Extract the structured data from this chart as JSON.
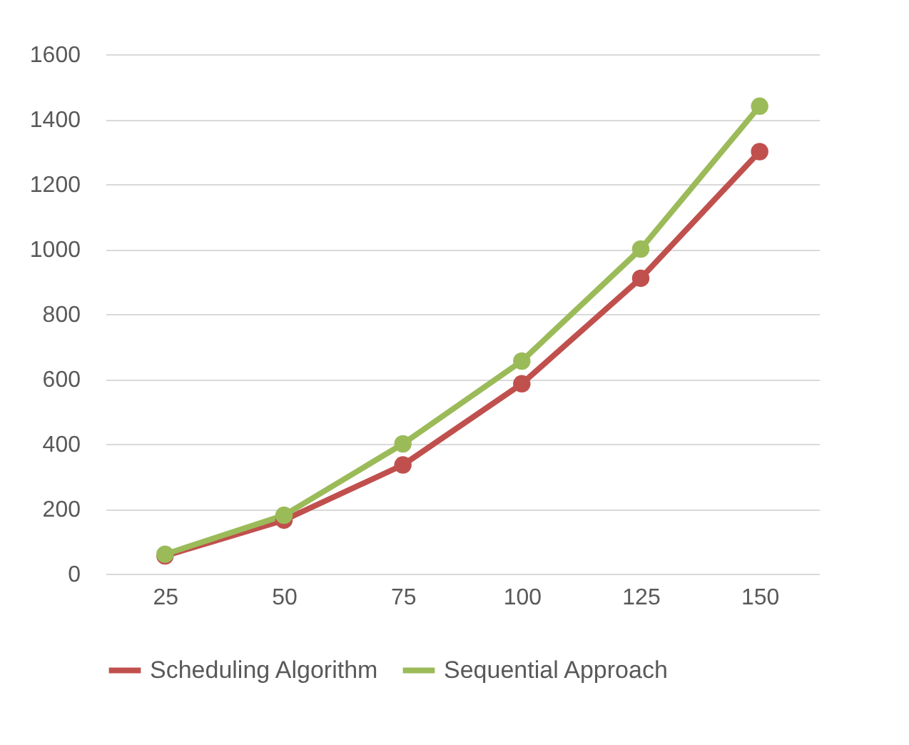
{
  "chart_data": {
    "type": "line",
    "categories": [
      "25",
      "50",
      "75",
      "100",
      "125",
      "150"
    ],
    "series": [
      {
        "name": "Scheduling Algorithm",
        "color": "#c0504d",
        "values": [
          55,
          165,
          335,
          585,
          910,
          1300
        ]
      },
      {
        "name": "Sequential Approach",
        "color": "#9bbb59",
        "values": [
          60,
          180,
          400,
          655,
          1000,
          1440
        ]
      }
    ],
    "ylim": [
      0,
      1600
    ],
    "yticks": [
      0,
      200,
      400,
      600,
      800,
      1000,
      1200,
      1400,
      1600
    ],
    "grid": "y",
    "legend": "bottom",
    "marker": "circle",
    "line_style": "solid"
  }
}
